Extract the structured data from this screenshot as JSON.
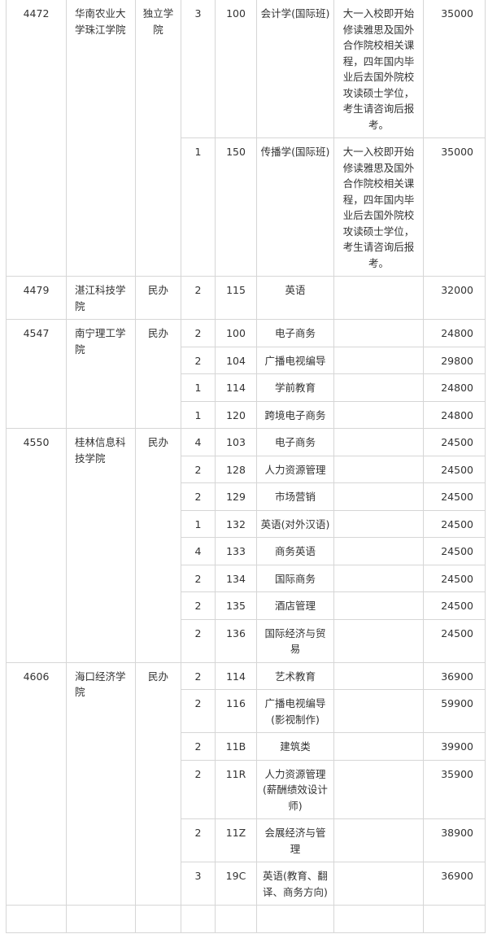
{
  "schools": [
    {
      "code": "4472",
      "name": "华南农业大学珠江学院",
      "type": "独立学院",
      "majors": [
        {
          "count": "3",
          "major_code": "100",
          "major": "会计学(国际班)",
          "notes": "大一入校即开始修读雅思及国外合作院校相关课程，四年国内毕业后去国外院校攻读硕士学位，考生请咨询后报考。",
          "fee": "35000"
        },
        {
          "count": "1",
          "major_code": "150",
          "major": "传播学(国际班)",
          "notes": "大一入校即开始修读雅思及国外合作院校相关课程，四年国内毕业后去国外院校攻读硕士学位，考生请咨询后报考。",
          "fee": "35000"
        }
      ]
    },
    {
      "code": "4479",
      "name": "湛江科技学院",
      "type": "民办",
      "majors": [
        {
          "count": "2",
          "major_code": "115",
          "major": "英语",
          "notes": "",
          "fee": "32000"
        }
      ]
    },
    {
      "code": "4547",
      "name": "南宁理工学院",
      "type": "民办",
      "majors": [
        {
          "count": "2",
          "major_code": "100",
          "major": "电子商务",
          "notes": "",
          "fee": "24800"
        },
        {
          "count": "2",
          "major_code": "104",
          "major": "广播电视编导",
          "notes": "",
          "fee": "29800"
        },
        {
          "count": "1",
          "major_code": "114",
          "major": "学前教育",
          "notes": "",
          "fee": "24800"
        },
        {
          "count": "1",
          "major_code": "120",
          "major": "跨境电子商务",
          "notes": "",
          "fee": "24800"
        }
      ]
    },
    {
      "code": "4550",
      "name": "桂林信息科技学院",
      "type": "民办",
      "majors": [
        {
          "count": "4",
          "major_code": "103",
          "major": "电子商务",
          "notes": "",
          "fee": "24500"
        },
        {
          "count": "2",
          "major_code": "128",
          "major": "人力资源管理",
          "notes": "",
          "fee": "24500"
        },
        {
          "count": "2",
          "major_code": "129",
          "major": "市场营销",
          "notes": "",
          "fee": "24500"
        },
        {
          "count": "1",
          "major_code": "132",
          "major": "英语(对外汉语)",
          "notes": "",
          "fee": "24500"
        },
        {
          "count": "4",
          "major_code": "133",
          "major": "商务英语",
          "notes": "",
          "fee": "24500"
        },
        {
          "count": "2",
          "major_code": "134",
          "major": "国际商务",
          "notes": "",
          "fee": "24500"
        },
        {
          "count": "2",
          "major_code": "135",
          "major": "酒店管理",
          "notes": "",
          "fee": "24500"
        },
        {
          "count": "2",
          "major_code": "136",
          "major": "国际经济与贸易",
          "notes": "",
          "fee": "24500"
        }
      ]
    },
    {
      "code": "4606",
      "name": "海口经济学院",
      "type": "民办",
      "majors": [
        {
          "count": "2",
          "major_code": "114",
          "major": "艺术教育",
          "notes": "",
          "fee": "36900"
        },
        {
          "count": "2",
          "major_code": "116",
          "major": "广播电视编导(影视制作)",
          "notes": "",
          "fee": "59900"
        },
        {
          "count": "2",
          "major_code": "11B",
          "major": "建筑类",
          "notes": "",
          "fee": "39900"
        },
        {
          "count": "2",
          "major_code": "11R",
          "major": "人力资源管理(薪酬绩效设计师)",
          "notes": "",
          "fee": "35900"
        },
        {
          "count": "2",
          "major_code": "11Z",
          "major": "会展经济与管理",
          "notes": "",
          "fee": "38900"
        },
        {
          "count": "3",
          "major_code": "19C",
          "major": "英语(教育、翻译、商务方向)",
          "notes": "",
          "fee": "36900"
        }
      ]
    }
  ]
}
